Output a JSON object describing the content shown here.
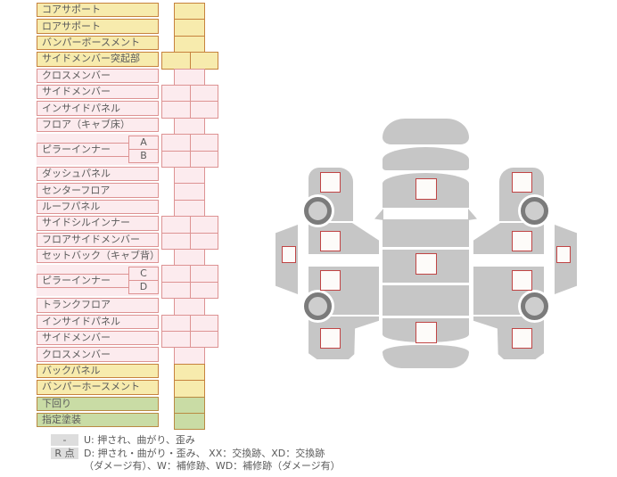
{
  "table": {
    "rows": [
      {
        "label": "コアサポート",
        "color": "yellow",
        "cells": "single"
      },
      {
        "label": "ロアサポート",
        "color": "yellow",
        "cells": "single"
      },
      {
        "label": "バンパーボースメント",
        "color": "yellow",
        "cells": "single"
      },
      {
        "label": "サイドメンバー突起部",
        "color": "yellow",
        "cells": "double"
      },
      {
        "label": "クロスメンバー",
        "color": "pink",
        "cells": "single"
      },
      {
        "label": "サイドメンバー",
        "color": "pink",
        "cells": "double"
      },
      {
        "label": "インサイドパネル",
        "color": "pink",
        "cells": "double"
      },
      {
        "label": "フロア（キャブ床）",
        "color": "pink",
        "cells": "single"
      },
      {
        "label": "ピラーインナー",
        "color": "pink",
        "cells": "double",
        "subs": [
          "A",
          "B"
        ]
      },
      {
        "label": "ダッシュパネル",
        "color": "pink",
        "cells": "single"
      },
      {
        "label": "センターフロア",
        "color": "pink",
        "cells": "single"
      },
      {
        "label": "ルーフパネル",
        "color": "pink",
        "cells": "single"
      },
      {
        "label": "サイドシルインナー",
        "color": "pink",
        "cells": "double"
      },
      {
        "label": "フロアサイドメンバー",
        "color": "pink",
        "cells": "double"
      },
      {
        "label": "セットバック（キャブ背）",
        "color": "pink",
        "cells": "single"
      },
      {
        "label": "ピラーインナー",
        "color": "pink",
        "cells": "double",
        "subs": [
          "C",
          "D"
        ]
      },
      {
        "label": "トランクフロア",
        "color": "pink",
        "cells": "single"
      },
      {
        "label": "インサイドパネル",
        "color": "pink",
        "cells": "double"
      },
      {
        "label": "サイドメンバー",
        "color": "pink",
        "cells": "double"
      },
      {
        "label": "クロスメンバー",
        "color": "pink",
        "cells": "single"
      },
      {
        "label": "バックパネル",
        "color": "yellow",
        "cells": "single"
      },
      {
        "label": "バンパーホースメント",
        "color": "yellow",
        "cells": "single"
      },
      {
        "label": "下回り",
        "color": "green",
        "cells": "single"
      },
      {
        "label": "指定塗装",
        "color": "green",
        "cells": "single"
      }
    ]
  },
  "legend": {
    "items": [
      {
        "badge": "-",
        "lines": [
          "U: 押され、曲がり、歪み"
        ]
      },
      {
        "badge": "R 点",
        "lines": [
          "D: 押され・曲がり・歪み、 XX：交換跡、XD：交換跡",
          "（ダメージ有）、W：補修跡、WD：補修跡（ダメージ有）"
        ]
      }
    ]
  },
  "diagram": {
    "views": [
      {
        "name": "left-side",
        "markers": 5,
        "wheels": 2
      },
      {
        "name": "top",
        "markers": 3,
        "wheels": 0
      },
      {
        "name": "right-side",
        "markers": 5,
        "wheels": 2
      }
    ],
    "marker_shape": "square"
  },
  "colors": {
    "yellow_bg": "#f7ebad",
    "yellow_bd": "#c6823e",
    "pink_bg": "#fcebee",
    "pink_bd": "#dd9393",
    "green_bg": "#c9dca5",
    "green_bd": "#b98a43",
    "text": "#5b5b5b",
    "badge_bg": "#dddddd",
    "car_gray": "#c6c6c6",
    "wheel_ring": "#7b7b7b",
    "wheel_hub": "#cecece",
    "marker_bg": "#fdfbf9",
    "marker_bd": "#c04545"
  }
}
